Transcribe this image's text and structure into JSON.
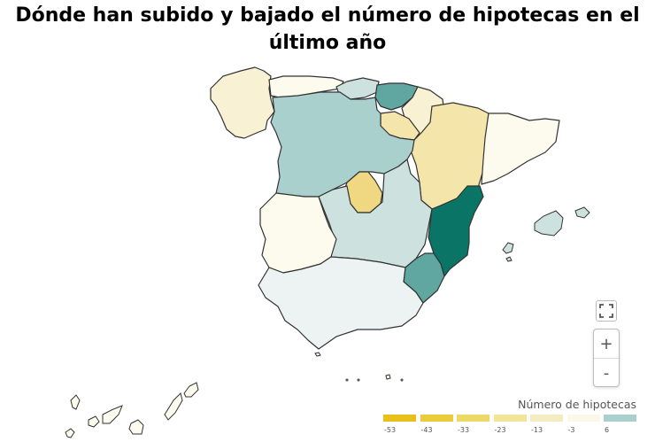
{
  "title": "Dónde han subido y bajado el número de hipotecas en el último año",
  "legend": {
    "title": "Número de hipotecas",
    "stops": [
      {
        "label": "-53",
        "color": "#e7c11a"
      },
      {
        "label": "-43",
        "color": "#eacb3b"
      },
      {
        "label": "-33",
        "color": "#efd966"
      },
      {
        "label": "-23",
        "color": "#f3e49a"
      },
      {
        "label": "-13",
        "color": "#f6ecc2"
      },
      {
        "label": "-3",
        "color": "#fbf8ea"
      },
      {
        "label": "6",
        "color": "#a9d0cd"
      }
    ]
  },
  "colors": {
    "dark_teal": "#0a7566",
    "mid_teal": "#5fa7a0",
    "light_teal": "#a9d0cd",
    "pale_teal": "#cde2df",
    "very_pale_teal": "#edf3f2",
    "cream": "#fdfaee",
    "pale_yellow": "#f8f1d4",
    "light_yellow": "#f4e6aa",
    "yellow": "#f0d882"
  },
  "regions": {
    "Galicia": "pale_yellow",
    "Asturias": "cream",
    "Cantabria": "pale_teal",
    "País Vasco": "mid_teal",
    "Navarra": "pale_yellow",
    "La Rioja": "light_yellow",
    "Aragón": "light_yellow",
    "Cataluña": "cream",
    "Castilla y León": "light_teal",
    "Madrid": "yellow",
    "Castilla-La Mancha": "pale_teal",
    "Extremadura": "cream",
    "Comunidad Valenciana": "dark_teal",
    "Murcia": "mid_teal",
    "Andalucía": "very_pale_teal",
    "Islas Baleares": "pale_teal",
    "Canarias": "cream",
    "Ceuta y Melilla": "cream"
  },
  "controls": {
    "fullscreen_icon": "expand-icon",
    "zoom_in": "+",
    "zoom_out": "-"
  }
}
